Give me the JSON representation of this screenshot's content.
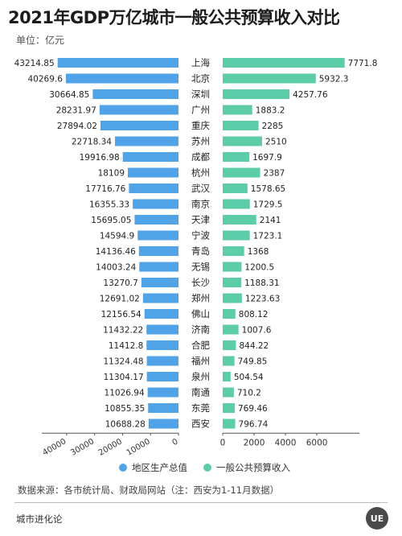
{
  "title": "2021年GDP万亿城市一般公共预算收入对比",
  "unit_label": "单位：亿元",
  "chart_data": {
    "type": "bar",
    "orientation": "horizontal-butterfly",
    "categories": [
      "上海",
      "北京",
      "深圳",
      "广州",
      "重庆",
      "苏州",
      "成都",
      "杭州",
      "武汉",
      "南京",
      "天津",
      "宁波",
      "青岛",
      "无锡",
      "长沙",
      "郑州",
      "佛山",
      "济南",
      "合肥",
      "福州",
      "泉州",
      "南通",
      "东莞",
      "西安"
    ],
    "series": [
      {
        "name": "地区生产总值",
        "color": "#4fa3e6",
        "values": [
          43214.85,
          40269.6,
          30664.85,
          28231.97,
          27894.02,
          22718.34,
          19916.98,
          18109,
          17716.76,
          16355.33,
          15695.05,
          14594.9,
          14136.46,
          14003.24,
          13270.7,
          12691.02,
          12156.54,
          11432.22,
          11412.8,
          11324.48,
          11304.17,
          11026.94,
          10855.35,
          10688.28
        ],
        "labels": [
          "43214.85",
          "40269.6",
          "30664.85",
          "28231.97",
          "27894.02",
          "22718.34",
          "19916.98",
          "18109",
          "17716.76",
          "16355.33",
          "15695.05",
          "14594.9",
          "14136.46",
          "14003.24",
          "13270.7",
          "12691.02",
          "12156.54",
          "11432.22",
          "11412.8",
          "11324.48",
          "11304.17",
          "11026.94",
          "10855.35",
          "10688.28"
        ],
        "axis_ticks": [
          "40000",
          "30000",
          "20000",
          "10000",
          "0"
        ],
        "xlim": [
          0,
          46000
        ]
      },
      {
        "name": "一般公共预算收入",
        "color": "#5dcca8",
        "values": [
          7771.8,
          5932.3,
          4257.76,
          1883.2,
          2285,
          2510,
          1697.9,
          2387,
          1578.65,
          1729.5,
          2141,
          1723.1,
          1368,
          1200.5,
          1188.31,
          1223.63,
          808.12,
          1007.6,
          844.22,
          749.85,
          504.54,
          710.2,
          769.46,
          796.74
        ],
        "labels": [
          "7771.8",
          "5932.3",
          "4257.76",
          "1883.2",
          "2285",
          "2510",
          "1697.9",
          "2387",
          "1578.65",
          "1729.5",
          "2141",
          "1723.1",
          "1368",
          "1200.5",
          "1188.31",
          "1223.63",
          "808.12",
          "1007.6",
          "844.22",
          "749.85",
          "504.54",
          "710.2",
          "769.46",
          "796.74"
        ],
        "axis_ticks": [
          "0",
          "2000",
          "4000",
          "6000"
        ],
        "xlim": [
          0,
          8200
        ]
      }
    ],
    "legend_position": "bottom"
  },
  "legend": [
    {
      "label": "地区生产总值",
      "color": "#4fa3e6"
    },
    {
      "label": "一般公共预算收入",
      "color": "#5dcca8"
    }
  ],
  "source": "数据来源：各市统计局、财政局网站（注：西安为1-11月数据）",
  "brand": "城市进化论",
  "logo_text": "UE"
}
